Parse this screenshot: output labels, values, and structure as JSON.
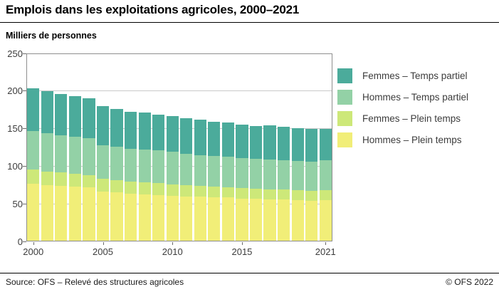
{
  "header": {
    "title": "Emplois dans les exploitations agricoles, 2000–2021",
    "unit_label": "Milliers de personnes"
  },
  "footer": {
    "source": "Source: OFS – Relevé des structures agricoles",
    "copyright": "© OFS 2022"
  },
  "colors": {
    "femmes_temps_partiel": "#4BAB9B",
    "hommes_temps_partiel": "#93D1A6",
    "femmes_plein_temps": "#CDE879",
    "hommes_plein_temps": "#F1EE78",
    "gridline": "#c9c9c9",
    "frame": "#8e8e8e"
  },
  "chart_data": {
    "type": "bar",
    "stacked": true,
    "title": "Emplois dans les exploitations agricoles, 2000–2021",
    "ylabel": "Milliers de personnes",
    "ylim": [
      0,
      250
    ],
    "yticks": [
      0,
      50,
      100,
      150,
      200,
      250
    ],
    "grid": "horizontal",
    "legend_position": "right",
    "years": [
      2000,
      2001,
      2002,
      2003,
      2004,
      2005,
      2006,
      2007,
      2008,
      2009,
      2010,
      2011,
      2012,
      2013,
      2014,
      2015,
      2016,
      2017,
      2018,
      2019,
      2020,
      2021
    ],
    "xtick_labels": [
      "2000",
      "2005",
      "2010",
      "2015",
      "2021"
    ],
    "xtick_indices": [
      0,
      5,
      10,
      15,
      21
    ],
    "series": [
      {
        "name": "Hommes – Plein temps",
        "color": "#F1EE78",
        "values": [
          77,
          75,
          74,
          73,
          71.5,
          66.5,
          65,
          63.5,
          62.5,
          62,
          61,
          60,
          59.5,
          59,
          58.5,
          57,
          56.5,
          55.5,
          55.5,
          54.5,
          54,
          54.5
        ]
      },
      {
        "name": "Femmes – Plein temps",
        "color": "#CDE879",
        "values": [
          19,
          18,
          17.5,
          17,
          17,
          16.5,
          16.5,
          16.5,
          16,
          15.5,
          15,
          14.5,
          14,
          14,
          13.5,
          14,
          14,
          14,
          13.5,
          14,
          13.5,
          13.5
        ]
      },
      {
        "name": "Hommes – Temps partiel",
        "color": "#93D1A6",
        "values": [
          51,
          51,
          50,
          49,
          48.5,
          45,
          44.5,
          43.5,
          44,
          43.5,
          43,
          42,
          41.5,
          40.5,
          40.5,
          39.5,
          39,
          39,
          39,
          38.5,
          39,
          39.5
        ]
      },
      {
        "name": "Femmes – Temps partiel",
        "color": "#4BAB9B",
        "values": [
          57,
          55.5,
          54.5,
          54,
          53.5,
          52,
          50.5,
          49,
          48.5,
          48,
          48,
          47,
          46.5,
          45.5,
          45.5,
          45,
          44,
          45.5,
          44.5,
          43.5,
          43.5,
          42.5
        ]
      }
    ],
    "totals": [
      204,
      199.5,
      196,
      193,
      190.5,
      180,
      176.5,
      172.5,
      171,
      169,
      167,
      163.5,
      161.5,
      159,
      158,
      155.5,
      153.5,
      154,
      152.5,
      150.5,
      150,
      150
    ],
    "legend_order": [
      "Femmes – Temps partiel",
      "Hommes – Temps partiel",
      "Femmes – Plein temps",
      "Hommes – Plein temps"
    ]
  }
}
